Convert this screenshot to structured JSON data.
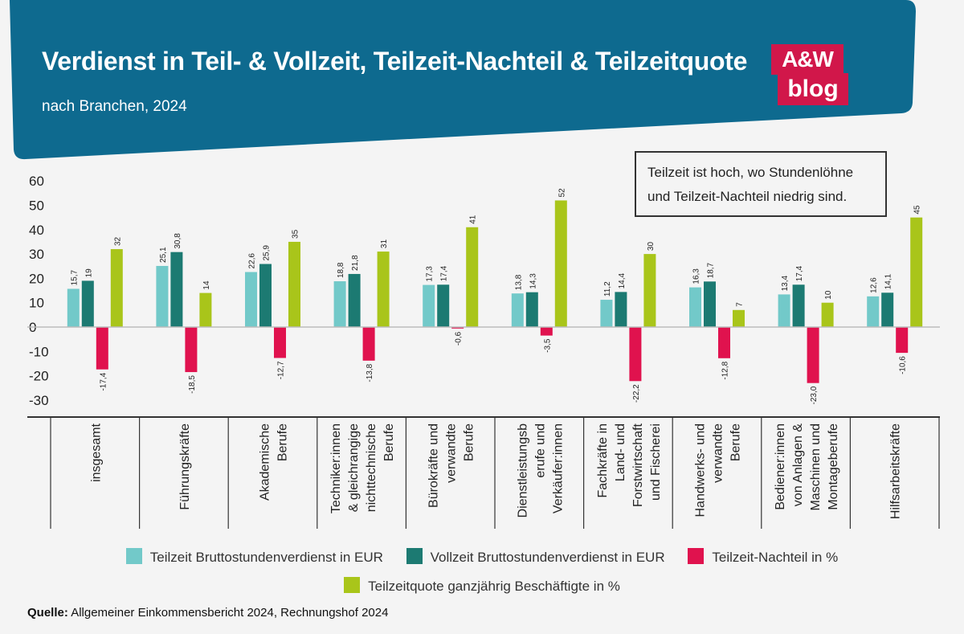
{
  "header": {
    "title": "Verdienst in Teil- & Vollzeit, Teilzeit-Nachteil & Teilzeitquote",
    "subtitle": "nach Branchen, 2024",
    "logo_top": "A&W",
    "logo_bottom": "blog"
  },
  "note": {
    "line1": "Teilzeit ist hoch, wo Stundenlöhne",
    "line2": "und Teilzeit-Nachteil niedrig sind."
  },
  "colors": {
    "header_bg": "#0e6a8f",
    "teilzeit": "#72c9c9",
    "vollzeit": "#1c7a72",
    "nachteil": "#e0124e",
    "quote": "#a9c51a"
  },
  "chart_data": {
    "type": "bar",
    "title": "Verdienst in Teil- & Vollzeit, Teilzeit-Nachteil & Teilzeitquote",
    "ylim": [
      -30,
      60
    ],
    "yticks": [
      "60",
      "50",
      "40",
      "30",
      "20",
      "10",
      "0",
      "-10",
      "-20",
      "-30"
    ],
    "categories": [
      [
        "insgesamt"
      ],
      [
        "Führungskräfte"
      ],
      [
        "Akademische",
        "Berufe"
      ],
      [
        "Techniker:innen",
        "& gleichrangige",
        "nichttechnische",
        "Berufe"
      ],
      [
        "Bürokräfte und",
        "verwandte",
        "Berufe"
      ],
      [
        "Dienstleistungsb",
        "erufe und",
        "Verkäufer:innen"
      ],
      [
        "Fachkräfte in",
        "Land- und",
        "Forstwirtschaft",
        "und Fischerei"
      ],
      [
        "Handwerks- und",
        "verwandte",
        "Berufe"
      ],
      [
        "Bediener:innen",
        "von Anlagen &",
        "Maschinen und",
        "Montageberufe"
      ],
      [
        "Hilfsarbeitskräfte"
      ]
    ],
    "series": [
      {
        "name": "Teilzeit Bruttostundenverdienst in EUR",
        "color": "#72c9c9",
        "values": [
          15.7,
          25.1,
          22.6,
          18.8,
          17.3,
          13.8,
          11.2,
          16.3,
          13.4,
          12.6
        ],
        "labels": [
          "15,7",
          "25,1",
          "22,6",
          "18,8",
          "17,3",
          "13,8",
          "11,2",
          "16,3",
          "13,4",
          "12,6"
        ]
      },
      {
        "name": "Vollzeit Bruttostundenverdienst in EUR",
        "color": "#1c7a72",
        "values": [
          19,
          30.8,
          25.9,
          21.8,
          17.4,
          14.3,
          14.4,
          18.7,
          17.4,
          14.1
        ],
        "labels": [
          "19",
          "30,8",
          "25,9",
          "21,8",
          "17,4",
          "14,3",
          "14,4",
          "18,7",
          "17,4",
          "14,1"
        ]
      },
      {
        "name": "Teilzeit-Nachteil in %",
        "color": "#e0124e",
        "values": [
          -17.4,
          -18.5,
          -12.7,
          -13.8,
          -0.6,
          -3.5,
          -22.2,
          -12.8,
          -23.0,
          -10.6
        ],
        "labels": [
          "-17,4",
          "-18,5",
          "-12,7",
          "-13,8",
          "-0,6",
          "-3,5",
          "-22,2",
          "-12,8",
          "-23,0",
          "-10,6"
        ]
      },
      {
        "name": "Teilzeitquote ganzjährig Beschäftigte in %",
        "color": "#a9c51a",
        "values": [
          32,
          14,
          35,
          31,
          41,
          52,
          30,
          7,
          10,
          45
        ],
        "labels": [
          "32",
          "14",
          "35",
          "31",
          "41",
          "52",
          "30",
          "7",
          "10",
          "45"
        ]
      }
    ]
  },
  "legend": {
    "row1": [
      "Teilzeit Bruttostundenverdienst in EUR",
      "Vollzeit Bruttostundenverdienst in EUR",
      "Teilzeit-Nachteil in %"
    ],
    "row2": [
      "Teilzeitquote ganzjährig Beschäftigte in %"
    ]
  },
  "source": {
    "label": "Quelle:",
    "text": " Allgemeiner Einkommensbericht 2024, Rechnungshof 2024"
  }
}
